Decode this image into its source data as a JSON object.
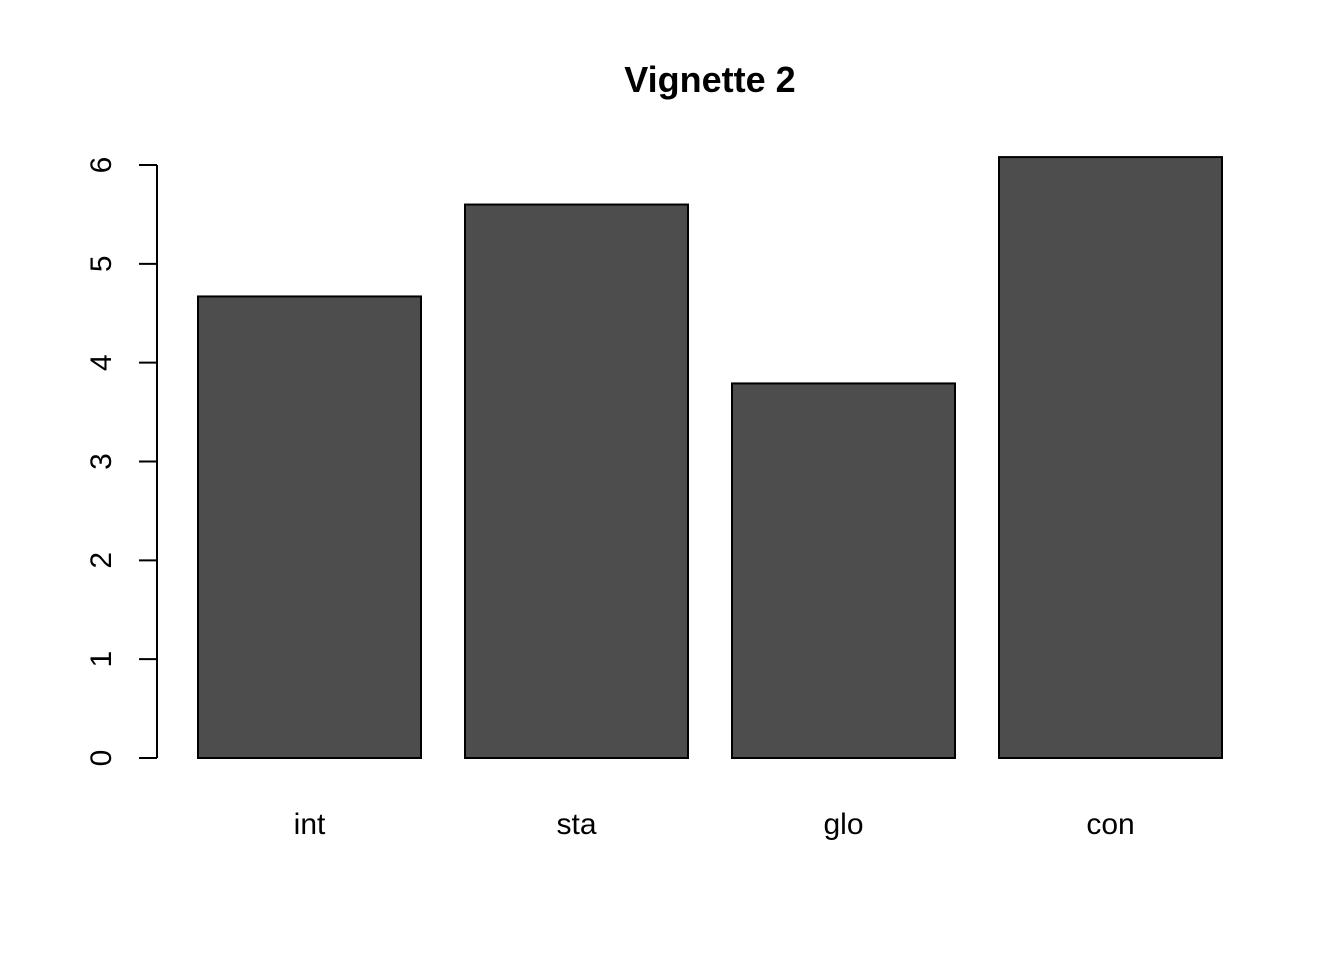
{
  "chart_data": {
    "type": "bar",
    "title": "Vignette 2",
    "xlabel": "",
    "ylabel": "",
    "categories": [
      "int",
      "sta",
      "glo",
      "con"
    ],
    "values": [
      4.67,
      5.6,
      3.79,
      6.08
    ],
    "ylim": [
      0,
      6
    ],
    "yticks": [
      "0",
      "1",
      "2",
      "3",
      "4",
      "5",
      "6"
    ],
    "grid": false,
    "legend": "none",
    "colors": {
      "bar_fill": "#4d4d4d",
      "bar_border": "#000000",
      "axis": "#000000",
      "background": "#ffffff"
    }
  }
}
